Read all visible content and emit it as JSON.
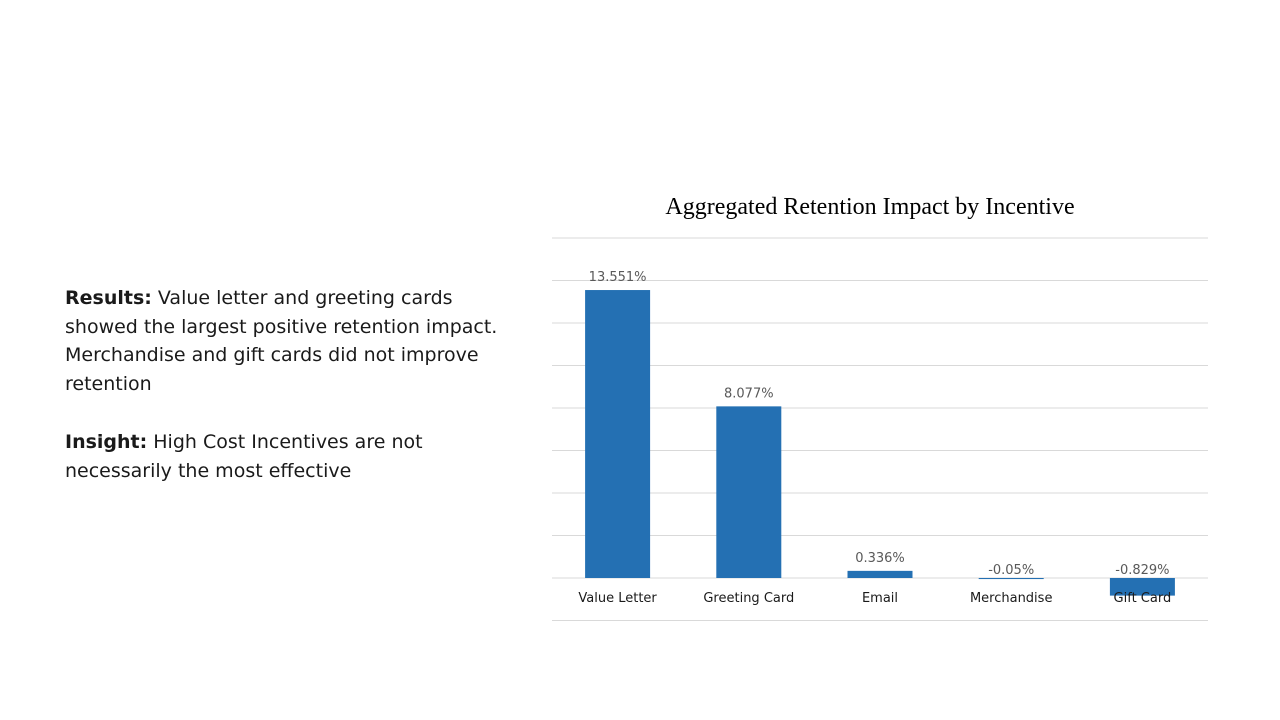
{
  "slide": {
    "results_heading": "Results:",
    "results_text": " Value letter and greeting cards showed the largest positive retention impact. Merchandise and gift cards did not improve retention",
    "insight_heading": "Insight:",
    "insight_text": " High Cost Incentives are not necessarily the most effective"
  },
  "chart_data": {
    "type": "bar",
    "title": "Aggregated Retention Impact by Incentive",
    "categories": [
      "Value Letter",
      "Greeting Card",
      "Email",
      "Merchandise",
      "Gift Card"
    ],
    "values": [
      13.551,
      8.077,
      0.336,
      -0.05,
      -0.829
    ],
    "value_labels": [
      "13.551%",
      "8.077%",
      "0.336%",
      "-0.05%",
      "-0.829%"
    ],
    "xlabel": "",
    "ylabel": "",
    "ylim": [
      -2,
      16
    ],
    "grid": true,
    "legend": "none",
    "bar_color": "#2470b3"
  }
}
